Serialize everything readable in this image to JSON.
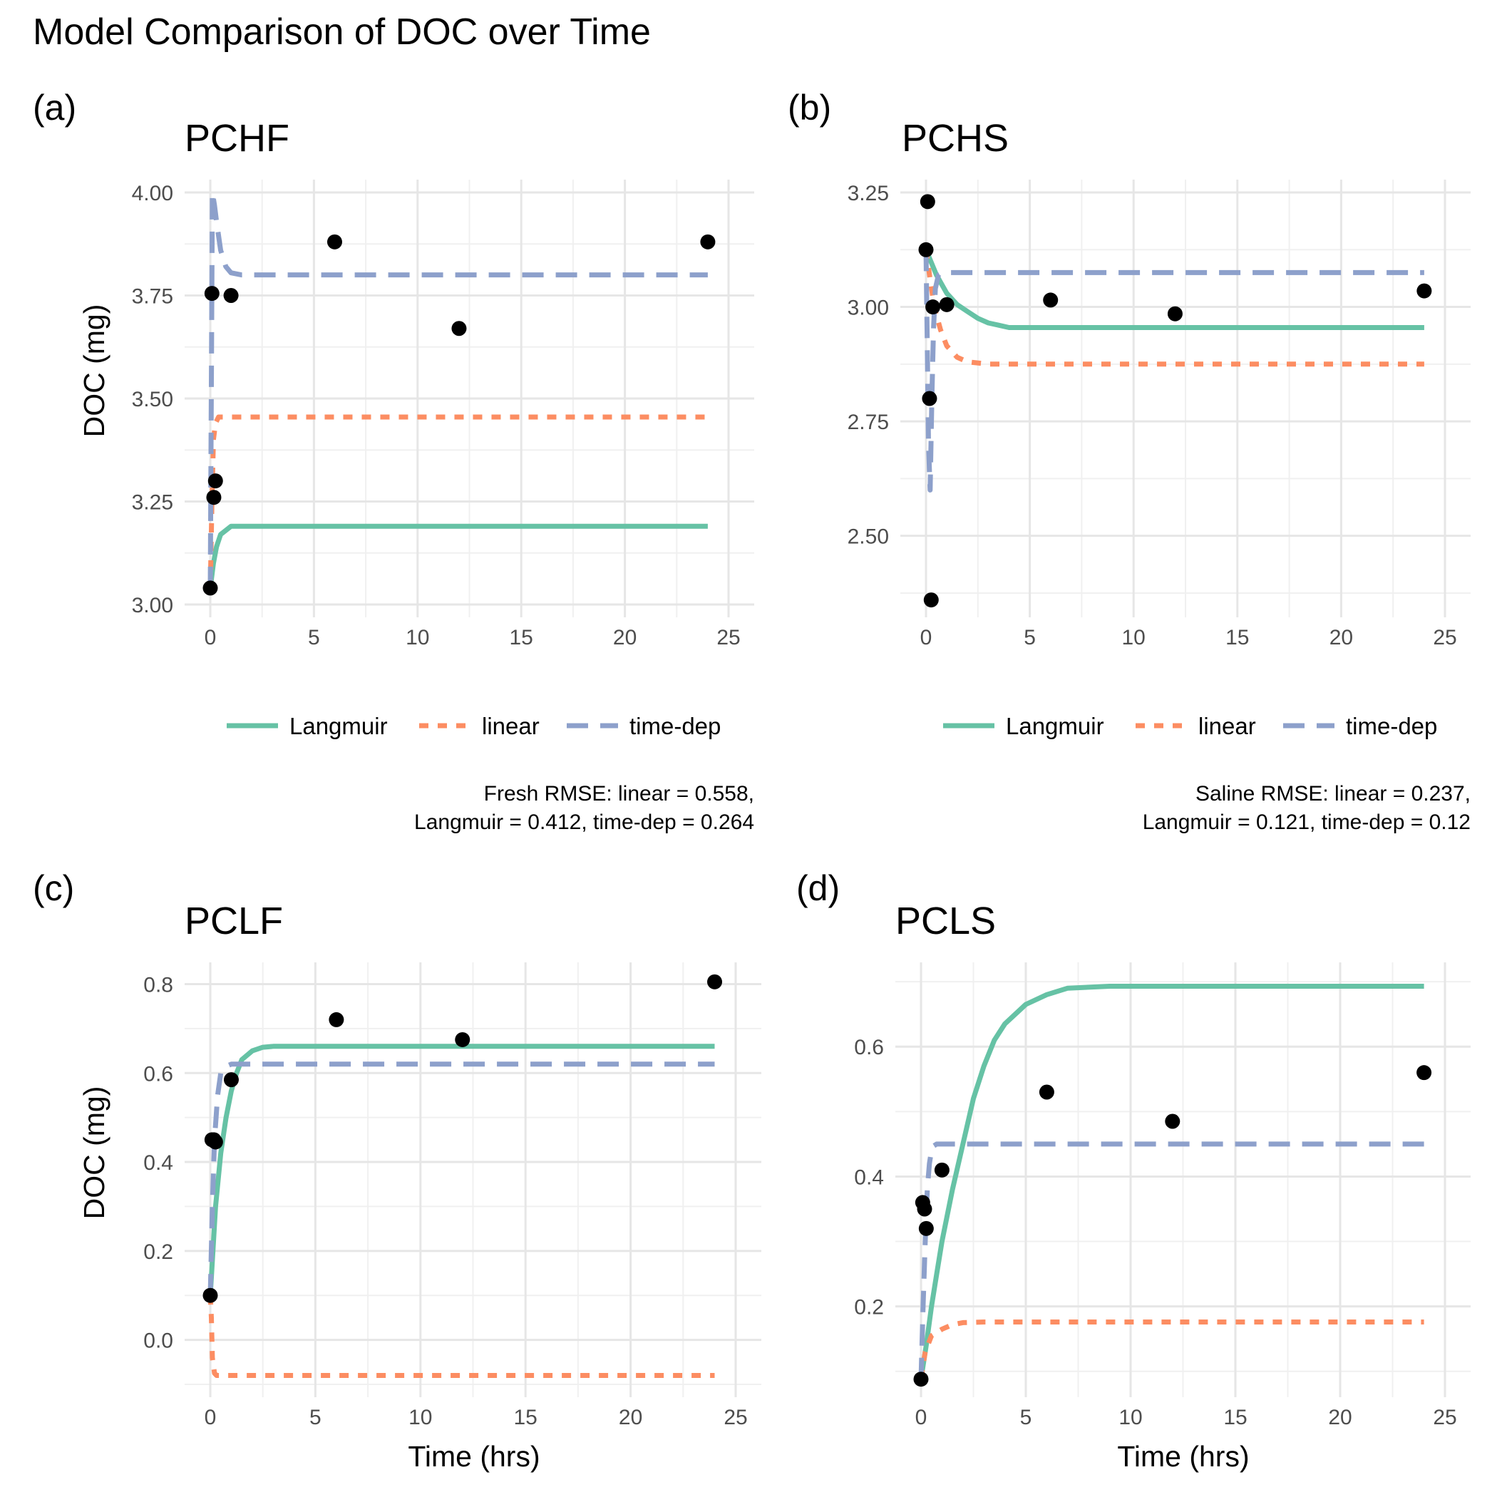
{
  "figure": {
    "title": "Model Comparison of DOC over Time",
    "panel_tags": [
      "(a)",
      "(b)",
      "(c)",
      "(d)"
    ],
    "captions": {
      "fresh": [
        "Fresh RMSE: linear = 0.558,",
        "Langmuir = 0.412, time-dep = 0.264"
      ],
      "saline": [
        "Saline RMSE: linear = 0.237,",
        "Langmuir = 0.121, time-dep = 0.12"
      ]
    }
  },
  "legend": {
    "items": [
      {
        "label": "Langmuir",
        "color": "#66C2A5",
        "style": "solid"
      },
      {
        "label": "linear",
        "color": "#FC8D62",
        "style": "dotted"
      },
      {
        "label": "time-dep",
        "color": "#8DA0CB",
        "style": "dashed"
      }
    ],
    "placement": "bottom"
  },
  "chart_data": [
    {
      "type": "line",
      "title": "PCHF",
      "xlabel": "",
      "ylabel": "DOC (mg)",
      "xlim": [
        0,
        25
      ],
      "ylim": [
        3.0,
        4.0
      ],
      "xticks": [
        "0",
        "5",
        "10",
        "15",
        "20",
        "25"
      ],
      "yticks": [
        "3.00",
        "3.25",
        "3.50",
        "3.75",
        "4.00"
      ],
      "grid": true,
      "points": {
        "x": [
          0,
          0.08,
          0.17,
          0.25,
          1,
          6,
          12,
          24
        ],
        "y": [
          3.04,
          3.755,
          3.26,
          3.3,
          3.75,
          3.88,
          3.67,
          3.88
        ]
      },
      "series": [
        {
          "name": "Langmuir",
          "x": [
            0,
            0.15,
            0.3,
            0.5,
            0.75,
            1,
            1.5,
            2,
            3,
            24
          ],
          "y": [
            3.04,
            3.1,
            3.14,
            3.17,
            3.18,
            3.19,
            3.19,
            3.19,
            3.19,
            3.19
          ]
        },
        {
          "name": "linear",
          "x": [
            0,
            0.08,
            0.15,
            0.25,
            0.4,
            0.6,
            24
          ],
          "y": [
            3.04,
            3.25,
            3.4,
            3.44,
            3.455,
            3.455,
            3.455
          ]
        },
        {
          "name": "time-dep",
          "x": [
            0,
            0.1,
            0.2,
            0.3,
            0.5,
            0.75,
            1,
            1.5,
            2,
            24
          ],
          "y": [
            3.04,
            4.0,
            3.97,
            3.93,
            3.86,
            3.82,
            3.805,
            3.8,
            3.8,
            3.8
          ]
        }
      ]
    },
    {
      "type": "line",
      "title": "PCHS",
      "xlabel": "",
      "ylabel": "",
      "xlim": [
        0,
        25
      ],
      "ylim": [
        2.35,
        3.25
      ],
      "xticks": [
        "0",
        "5",
        "10",
        "15",
        "20",
        "25"
      ],
      "yticks": [
        "2.50",
        "2.75",
        "3.00",
        "3.25"
      ],
      "grid": true,
      "points": {
        "x": [
          0,
          0.08,
          0.17,
          0.25,
          0.33,
          1,
          6,
          12,
          24
        ],
        "y": [
          3.125,
          3.23,
          2.8,
          2.36,
          3.0,
          3.005,
          3.015,
          2.985,
          3.035
        ]
      },
      "series": [
        {
          "name": "Langmuir",
          "x": [
            0,
            0.5,
            1,
            1.5,
            2,
            2.5,
            3,
            3.5,
            4,
            5,
            6,
            8,
            24
          ],
          "y": [
            3.125,
            3.07,
            3.03,
            3.005,
            2.99,
            2.975,
            2.965,
            2.96,
            2.955,
            2.955,
            2.955,
            2.955,
            2.955
          ]
        },
        {
          "name": "linear",
          "x": [
            0,
            0.2,
            0.4,
            0.7,
            1,
            1.5,
            2,
            3,
            24
          ],
          "y": [
            3.125,
            3.06,
            3.0,
            2.95,
            2.915,
            2.89,
            2.88,
            2.875,
            2.875
          ]
        },
        {
          "name": "time-dep",
          "x": [
            0,
            0.05,
            0.12,
            0.2,
            0.28,
            0.36,
            0.45,
            0.6,
            0.8,
            1,
            24
          ],
          "y": [
            3.125,
            2.95,
            2.7,
            2.6,
            2.8,
            2.95,
            3.04,
            3.07,
            3.075,
            3.075,
            3.075
          ]
        }
      ]
    },
    {
      "type": "line",
      "title": "PCLF",
      "xlabel": "Time (hrs)",
      "ylabel": "DOC (mg)",
      "xlim": [
        0,
        25
      ],
      "ylim": [
        -0.1,
        0.82
      ],
      "xticks": [
        "0",
        "5",
        "10",
        "15",
        "20",
        "25"
      ],
      "yticks": [
        "0.0",
        "0.2",
        "0.4",
        "0.6",
        "0.8"
      ],
      "grid": true,
      "points": {
        "x": [
          0,
          0.08,
          0.17,
          0.25,
          1,
          6,
          12,
          24
        ],
        "y": [
          0.1,
          0.45,
          0.45,
          0.445,
          0.585,
          0.72,
          0.675,
          0.805
        ]
      },
      "series": [
        {
          "name": "Langmuir",
          "x": [
            0,
            0.25,
            0.5,
            0.75,
            1,
            1.25,
            1.5,
            2,
            2.5,
            3,
            5,
            24
          ],
          "y": [
            0.1,
            0.3,
            0.42,
            0.5,
            0.56,
            0.6,
            0.63,
            0.65,
            0.658,
            0.66,
            0.66,
            0.66
          ]
        },
        {
          "name": "linear",
          "x": [
            0,
            0.05,
            0.1,
            0.2,
            0.3,
            24
          ],
          "y": [
            0.1,
            0.05,
            -0.04,
            -0.075,
            -0.08,
            -0.08
          ]
        },
        {
          "name": "time-dep",
          "x": [
            0,
            0.1,
            0.2,
            0.35,
            0.5,
            0.75,
            1,
            24
          ],
          "y": [
            0.1,
            0.3,
            0.45,
            0.55,
            0.6,
            0.615,
            0.62,
            0.62
          ]
        }
      ]
    },
    {
      "type": "line",
      "title": "PCLS",
      "xlabel": "Time (hrs)",
      "ylabel": "",
      "xlim": [
        0,
        25
      ],
      "ylim": [
        0.08,
        0.71
      ],
      "xticks": [
        "0",
        "5",
        "10",
        "15",
        "20",
        "25"
      ],
      "yticks": [
        "0.2",
        "0.4",
        "0.6"
      ],
      "grid": true,
      "points": {
        "x": [
          0,
          0.08,
          0.17,
          0.25,
          1,
          6,
          12,
          24
        ],
        "y": [
          0.088,
          0.36,
          0.35,
          0.32,
          0.41,
          0.53,
          0.485,
          0.56
        ]
      },
      "series": [
        {
          "name": "Langmuir",
          "x": [
            0,
            0.25,
            0.5,
            0.75,
            1,
            1.5,
            2,
            2.5,
            3,
            3.5,
            4,
            5,
            6,
            7,
            9,
            24
          ],
          "y": [
            0.088,
            0.14,
            0.2,
            0.25,
            0.3,
            0.38,
            0.45,
            0.52,
            0.57,
            0.61,
            0.635,
            0.665,
            0.68,
            0.69,
            0.693,
            0.693
          ]
        },
        {
          "name": "linear",
          "x": [
            0,
            0.2,
            0.5,
            1,
            1.5,
            2,
            3,
            24
          ],
          "y": [
            0.088,
            0.13,
            0.155,
            0.165,
            0.172,
            0.175,
            0.176,
            0.176
          ]
        },
        {
          "name": "time-dep",
          "x": [
            0,
            0.1,
            0.2,
            0.3,
            0.4,
            0.5,
            0.6,
            0.75,
            1,
            24
          ],
          "y": [
            0.088,
            0.2,
            0.3,
            0.38,
            0.42,
            0.44,
            0.447,
            0.45,
            0.45,
            0.45
          ]
        }
      ]
    }
  ]
}
